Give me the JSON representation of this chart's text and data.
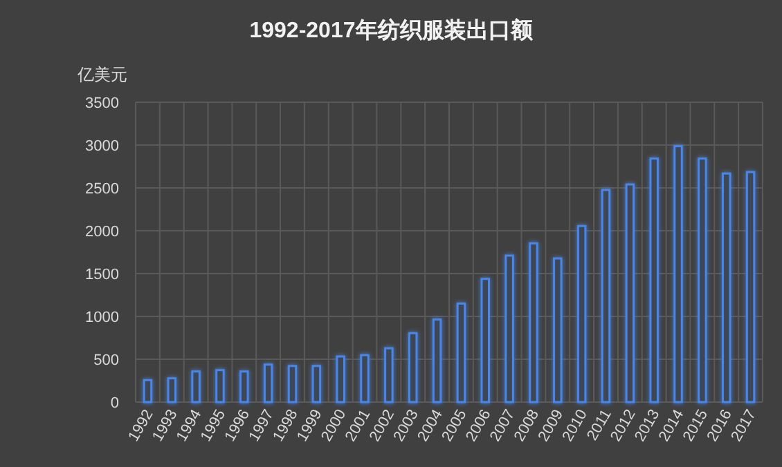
{
  "chart_data": {
    "type": "bar",
    "title": "1992-2017年纺织服装出口额",
    "ylabel": "亿美元",
    "categories": [
      "1992",
      "1993",
      "1994",
      "1995",
      "1996",
      "1997",
      "1998",
      "1999",
      "2000",
      "2001",
      "2002",
      "2003",
      "2004",
      "2005",
      "2006",
      "2007",
      "2008",
      "2009",
      "2010",
      "2011",
      "2012",
      "2013",
      "2014",
      "2015",
      "2016",
      "2017"
    ],
    "values": [
      256,
      277,
      357,
      373,
      357,
      437,
      421,
      421,
      532,
      548,
      628,
      804,
      964,
      1150,
      1438,
      1709,
      1853,
      1677,
      2055,
      2476,
      2540,
      2843,
      2987,
      2843,
      2668,
      2684
    ],
    "color": "#4a86e8",
    "ylim": [
      0,
      3500
    ],
    "yticks": [
      0,
      500,
      1000,
      1500,
      2000,
      2500,
      3000,
      3500
    ],
    "grid": true
  }
}
